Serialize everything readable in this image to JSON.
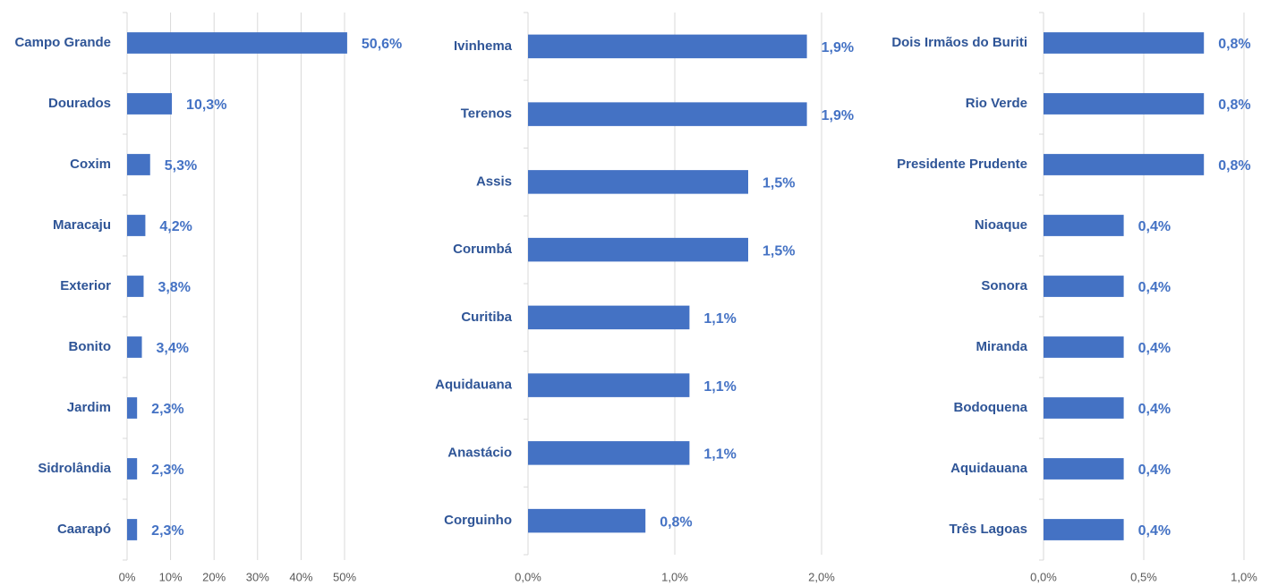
{
  "chart_data": [
    {
      "type": "bar",
      "orientation": "horizontal",
      "color": "#4472c4",
      "grid": true,
      "categories": [
        "Campo Grande",
        "Dourados",
        "Coxim",
        "Maracaju",
        "Exterior",
        "Bonito",
        "Jardim",
        "Sidrolândia",
        "Caarapó"
      ],
      "values": [
        50.6,
        10.3,
        5.3,
        4.2,
        3.8,
        3.4,
        2.3,
        2.3,
        2.3
      ],
      "value_labels": [
        "50,6%",
        "10,3%",
        "5,3%",
        "4,2%",
        "3,8%",
        "3,4%",
        "2,3%",
        "2,3%",
        "2,3%"
      ],
      "xlim": [
        0,
        50
      ],
      "xticks": [
        {
          "value": 0,
          "label": "0%"
        },
        {
          "value": 10,
          "label": "10%"
        },
        {
          "value": 20,
          "label": "20%"
        },
        {
          "value": 30,
          "label": "30%"
        },
        {
          "value": 40,
          "label": "40%"
        },
        {
          "value": 50,
          "label": "50%"
        }
      ]
    },
    {
      "type": "bar",
      "orientation": "horizontal",
      "color": "#4472c4",
      "grid": true,
      "categories": [
        "Ivinhema",
        "Terenos",
        "Assis",
        "Corumbá",
        "Curitiba",
        "Aquidauana",
        "Anastácio",
        "Corguinho"
      ],
      "values": [
        1.9,
        1.9,
        1.5,
        1.5,
        1.1,
        1.1,
        1.1,
        0.8
      ],
      "value_labels": [
        "1,9%",
        "1,9%",
        "1,5%",
        "1,5%",
        "1,1%",
        "1,1%",
        "1,1%",
        "0,8%"
      ],
      "xlim": [
        0,
        2
      ],
      "xticks": [
        {
          "value": 0,
          "label": "0,0%"
        },
        {
          "value": 1,
          "label": "1,0%"
        },
        {
          "value": 2,
          "label": "2,0%"
        }
      ]
    },
    {
      "type": "bar",
      "orientation": "horizontal",
      "color": "#4472c4",
      "grid": true,
      "categories": [
        "Dois Irmãos do Buriti",
        "Rio Verde",
        "Presidente Prudente",
        "Nioaque",
        "Sonora",
        "Miranda",
        "Bodoquena",
        "Aquidauana",
        "Três Lagoas"
      ],
      "values": [
        0.8,
        0.8,
        0.8,
        0.4,
        0.4,
        0.4,
        0.4,
        0.4,
        0.4
      ],
      "value_labels": [
        "0,8%",
        "0,8%",
        "0,8%",
        "0,4%",
        "0,4%",
        "0,4%",
        "0,4%",
        "0,4%",
        "0,4%"
      ],
      "xlim": [
        0,
        1
      ],
      "xticks": [
        {
          "value": 0,
          "label": "0,0%"
        },
        {
          "value": 0.5,
          "label": "0,5%"
        },
        {
          "value": 1,
          "label": "1,0%"
        }
      ]
    }
  ]
}
